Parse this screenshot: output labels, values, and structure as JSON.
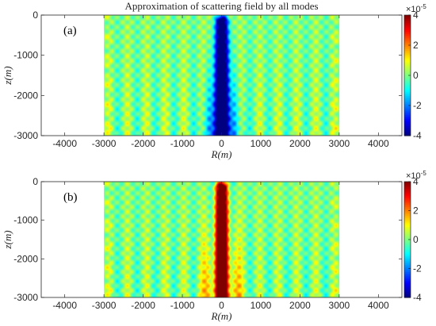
{
  "figure_title": "Approximation of scattering field by all modes",
  "chart_data": [
    {
      "type": "heatmap",
      "panel": "(a)",
      "title": "Approximation of scattering field by all modes",
      "xlabel": "R(m)",
      "ylabel": "z(m)",
      "xlim": [
        -4600,
        4600
      ],
      "ylim": [
        -3000,
        0
      ],
      "x_ticks": [
        "-4000",
        "-3000",
        "-2000",
        "-1000",
        "0",
        "1000",
        "2000",
        "3000",
        "4000"
      ],
      "y_ticks": [
        "0",
        "-1000",
        "-2000",
        "-3000"
      ],
      "field_extent": {
        "x": [
          -3000,
          3000
        ],
        "z": [
          -3000,
          0
        ]
      },
      "central_lobe_sign": "negative",
      "colorbar": {
        "range": [
          -4,
          4
        ],
        "ticks": [
          "4",
          "2",
          "0",
          "-2",
          "-4"
        ],
        "exponent_text": "×10",
        "exponent": "-5",
        "colormap": "jet"
      }
    },
    {
      "type": "heatmap",
      "panel": "(b)",
      "title": "",
      "xlabel": "R(m)",
      "ylabel": "z(m)",
      "xlim": [
        -4600,
        4600
      ],
      "ylim": [
        -3000,
        0
      ],
      "x_ticks": [
        "-4000",
        "-3000",
        "-2000",
        "-1000",
        "0",
        "1000",
        "2000",
        "3000",
        "4000"
      ],
      "y_ticks": [
        "0",
        "-1000",
        "-2000",
        "-3000"
      ],
      "field_extent": {
        "x": [
          -3000,
          3000
        ],
        "z": [
          -3000,
          0
        ]
      },
      "central_lobe_sign": "positive",
      "colorbar": {
        "range": [
          -4,
          4
        ],
        "ticks": [
          "4",
          "2",
          "0",
          "-2",
          "-4"
        ],
        "exponent_text": "×10",
        "exponent": "-5",
        "colormap": "jet"
      }
    }
  ]
}
